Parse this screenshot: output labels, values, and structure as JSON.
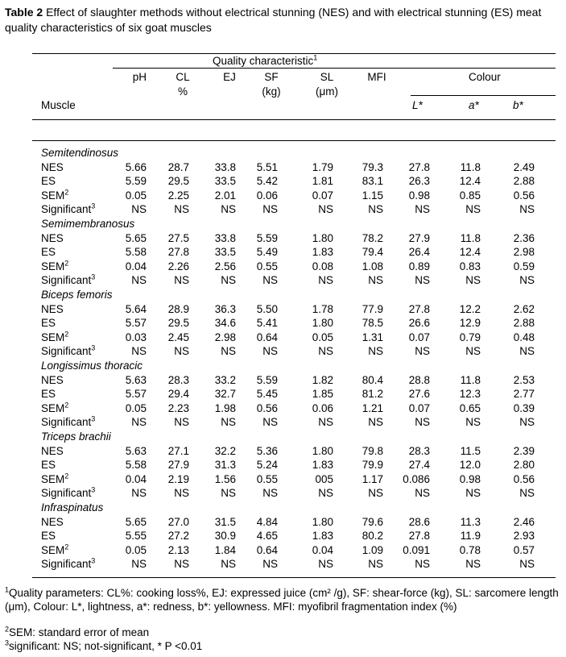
{
  "caption": {
    "label": "Table 2",
    "text": " Effect of slaughter methods without electrical stunning (NES) and with electrical stunning (ES) meat quality characteristics of six goat muscles"
  },
  "header": {
    "group_label": "Quality characteristic",
    "group_sup": "1",
    "muscle_label": "Muscle",
    "colour_label": "Colour",
    "columns": [
      {
        "line1": "pH",
        "line2": ""
      },
      {
        "line1": "CL",
        "line2": "%"
      },
      {
        "line1": "EJ",
        "line2": ""
      },
      {
        "line1": "SF",
        "line2": "(kg)"
      },
      {
        "line1": "SL",
        "line2": "(μm)"
      },
      {
        "line1": "MFI",
        "line2": ""
      }
    ],
    "colour_columns": [
      "L*",
      "a*",
      "b*"
    ]
  },
  "row_labels": {
    "nes": "NES",
    "es": "ES",
    "sem": "SEM",
    "sem_sup": "2",
    "sig": "Significant",
    "sig_sup": "3"
  },
  "muscles": [
    {
      "name": "Semitendinosus",
      "nes": [
        "5.66",
        "28.7",
        "33.8",
        "5.51",
        "1.79",
        "79.3",
        "27.8",
        "11.8",
        "2.49"
      ],
      "es": [
        "5.59",
        "29.5",
        "33.5",
        "5.42",
        "1.81",
        "83.1",
        "26.3",
        "12.4",
        "2.88"
      ],
      "sem": [
        "0.05",
        "2.25",
        "2.01",
        "0.06",
        "0.07",
        "1.15",
        "0.98",
        "0.85",
        "0.56"
      ],
      "sig": [
        "NS",
        "NS",
        "NS",
        "NS",
        "NS",
        "NS",
        "NS",
        "NS",
        "NS"
      ]
    },
    {
      "name": "Semimembranosus",
      "nes": [
        "5.65",
        "27.5",
        "33.8",
        "5.59",
        "1.80",
        "78.2",
        "27.9",
        "11.8",
        "2.36"
      ],
      "es": [
        "5.58",
        "27.8",
        "33.5",
        "5.49",
        "1.83",
        "79.4",
        "26.4",
        "12.4",
        "2.98"
      ],
      "sem": [
        "0.04",
        "2.26",
        "2.56",
        "0.55",
        "0.08",
        "1.08",
        "0.89",
        "0.83",
        "0.59"
      ],
      "sig": [
        "NS",
        "NS",
        "NS",
        "NS",
        "NS",
        "NS",
        "NS",
        "NS",
        "NS"
      ]
    },
    {
      "name": "Biceps femoris",
      "nes": [
        "5.64",
        "28.9",
        "36.3",
        "5.50",
        "1.78",
        "77.9",
        "27.8",
        "12.2",
        "2.62"
      ],
      "es": [
        "5.57",
        "29.5",
        "34.6",
        "5.41",
        "1.80",
        "78.5",
        "26.6",
        "12.9",
        "2.88"
      ],
      "sem": [
        "0.03",
        "2.45",
        "2.98",
        "0.64",
        "0.05",
        "1.31",
        "0.07",
        "0.79",
        "0.48"
      ],
      "sig": [
        "NS",
        "NS",
        "NS",
        "NS",
        "NS",
        "NS",
        "NS",
        "NS",
        "NS"
      ]
    },
    {
      "name": "Longissimus thoracic",
      "nes": [
        "5.63",
        "28.3",
        "33.2",
        "5.59",
        "1.82",
        "80.4",
        "28.8",
        "11.8",
        "2.53"
      ],
      "es": [
        "5.57",
        "29.4",
        "32.7",
        "5.45",
        "1.85",
        "81.2",
        "27.6",
        "12.3",
        "2.77"
      ],
      "sem": [
        "0.05",
        "2.23",
        "1.98",
        "0.56",
        "0.06",
        "1.21",
        "0.07",
        "0.65",
        "0.39"
      ],
      "sig": [
        "NS",
        "NS",
        "NS",
        "NS",
        "NS",
        "NS",
        "NS",
        "NS",
        "NS"
      ]
    },
    {
      "name": "Triceps brachii",
      "nes": [
        "5.63",
        "27.1",
        "32.2",
        "5.36",
        "1.80",
        "79.8",
        "28.3",
        "11.5",
        "2.39"
      ],
      "es": [
        "5.58",
        "27.9",
        "31.3",
        "5.24",
        "1.83",
        "79.9",
        "27.4",
        "12.0",
        "2.80"
      ],
      "sem": [
        "0.04",
        "2.19",
        "1.56",
        "0.55",
        "005",
        "1.17",
        "0.086",
        "0.98",
        "0.56"
      ],
      "sig": [
        "NS",
        "NS",
        "NS",
        "NS",
        "NS",
        "NS",
        "NS",
        "NS",
        "NS"
      ]
    },
    {
      "name": "Infraspinatus",
      "nes": [
        "5.65",
        "27.0",
        "31.5",
        "4.84",
        "1.80",
        "79.6",
        "28.6",
        "11.3",
        "2.46"
      ],
      "es": [
        "5.55",
        "27.2",
        "30.9",
        "4.65",
        "1.83",
        "80.2",
        "27.8",
        "11.9",
        "2.93"
      ],
      "sem": [
        "0.05",
        "2.13",
        "1.84",
        "0.64",
        "0.04",
        "1.09",
        "0.091",
        "0.78",
        "0.57"
      ],
      "sig": [
        "NS",
        "NS",
        "NS",
        "NS",
        "NS",
        "NS",
        "NS",
        "NS",
        "NS"
      ]
    }
  ],
  "footnotes": [
    {
      "sup": "1",
      "text": "Quality parameters: CL%: cooking loss%, EJ: expressed juice (cm² /g), SF: shear-force (kg), SL: sarcomere length (μm), Colour: L*, lightness, a*: redness, b*: yellowness. MFI: myofibril fragmentation index (%)"
    },
    {
      "sup": "2",
      "text": "SEM: standard error of mean"
    },
    {
      "sup": "3",
      "text": "significant: NS; not-significant, * P <0.01"
    }
  ]
}
